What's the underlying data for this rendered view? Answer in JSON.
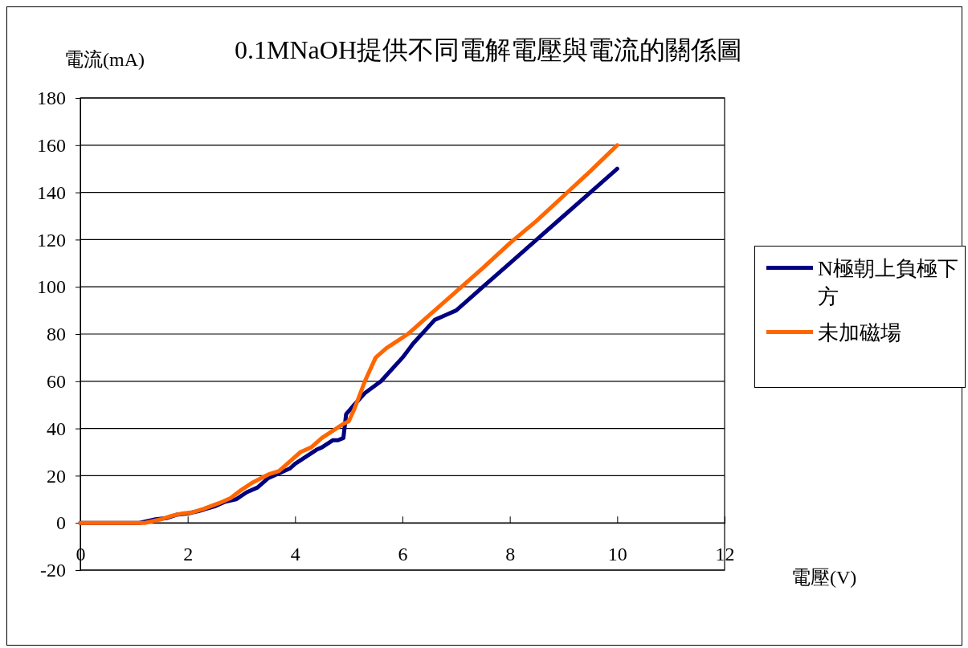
{
  "chart_data": {
    "type": "line",
    "title": "0.1MNaOH提供不同電解電壓與電流的關係圖",
    "xlabel": "電壓(V)",
    "ylabel": "電流(mA)",
    "xlim": [
      0,
      12
    ],
    "xticks": [
      0,
      2,
      4,
      6,
      8,
      10,
      12
    ],
    "ylim": [
      -20,
      180
    ],
    "yticks": [
      -20,
      0,
      20,
      40,
      60,
      80,
      100,
      120,
      140,
      160,
      180
    ],
    "grid": "y",
    "legend": "right",
    "marker": "none",
    "line_style": "solid",
    "series": [
      {
        "name": "N極朝上負極下方",
        "color": "#000080",
        "x": [
          0,
          1.1,
          1.4,
          1.6,
          1.8,
          2,
          2.2,
          2.5,
          2.7,
          2.9,
          3.1,
          3.3,
          3.5,
          3.7,
          3.9,
          4.0,
          4.2,
          4.4,
          4.5,
          4.7,
          4.8,
          4.9,
          4.95,
          5.1,
          5.3,
          5.6,
          6.0,
          6.2,
          6.4,
          6.6,
          6.8,
          7,
          7.2,
          7.5,
          8,
          8.5,
          9,
          9.5,
          10
        ],
        "values": [
          0,
          0,
          1.5,
          2,
          3.5,
          4,
          5,
          7,
          9,
          10,
          13,
          15,
          19,
          21,
          23,
          25,
          28,
          31,
          32,
          35,
          35,
          36,
          46,
          50,
          55,
          60,
          70,
          76,
          81,
          86,
          88,
          90,
          94,
          100,
          110,
          120,
          130,
          140,
          150
        ]
      },
      {
        "name": "未加磁場",
        "color": "#ff6600",
        "x": [
          0,
          1.2,
          1.5,
          1.7,
          1.9,
          2.1,
          2.3,
          2.6,
          2.8,
          3,
          3.2,
          3.5,
          3.7,
          3.9,
          4.1,
          4.3,
          4.5,
          4.7,
          4.9,
          5.0,
          5.1,
          5.3,
          5.5,
          5.7,
          5.9,
          6.1,
          6.4,
          7,
          7.5,
          8,
          8.5,
          9,
          9.5,
          10
        ],
        "values": [
          0,
          0,
          1.5,
          3,
          4,
          4.5,
          6,
          8.5,
          10.5,
          14,
          17,
          20.5,
          22,
          26,
          30,
          32,
          36,
          39,
          42,
          43,
          48,
          60,
          70,
          74,
          77,
          80,
          86,
          98,
          108,
          118.5,
          128,
          138.5,
          149,
          160
        ]
      }
    ]
  }
}
